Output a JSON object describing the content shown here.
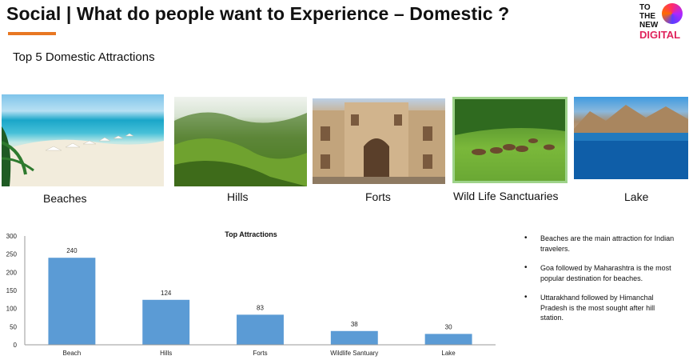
{
  "header": {
    "title": "Social | What do people want to Experience – Domestic ?",
    "subtitle": "Top 5 Domestic Attractions",
    "logo": [
      "TO",
      "THE",
      "NEW",
      "DIGITAL"
    ],
    "accent_color": "#e87722"
  },
  "attractions": [
    {
      "caption": "Beaches",
      "image": "beach-photo"
    },
    {
      "caption": "Hills",
      "image": "hills-photo"
    },
    {
      "caption": "Forts",
      "image": "fort-photo"
    },
    {
      "caption": "Wild Life Sanctuaries",
      "image": "wildlife-photo"
    },
    {
      "caption": "Lake",
      "image": "lake-photo"
    }
  ],
  "chart_data": {
    "type": "bar",
    "title": "Top Attractions",
    "categories": [
      "Beach",
      "Hills",
      "Forts",
      "Wildlife Santuary",
      "Lake"
    ],
    "values": [
      240,
      124,
      83,
      38,
      30
    ],
    "ylim": [
      0,
      300
    ],
    "yticks": [
      0,
      50,
      100,
      150,
      200,
      250,
      300
    ],
    "xlabel": "",
    "ylabel": "",
    "grid": false,
    "bar_color": "#5b9bd5",
    "data_labels": true
  },
  "notes": [
    "Beaches are the main attraction for Indian travelers.",
    "Goa followed by Maharashtra is the most popular destination for beaches.",
    "Uttarakhand followed by Himanchal Pradesh is the most sought after hill station."
  ]
}
